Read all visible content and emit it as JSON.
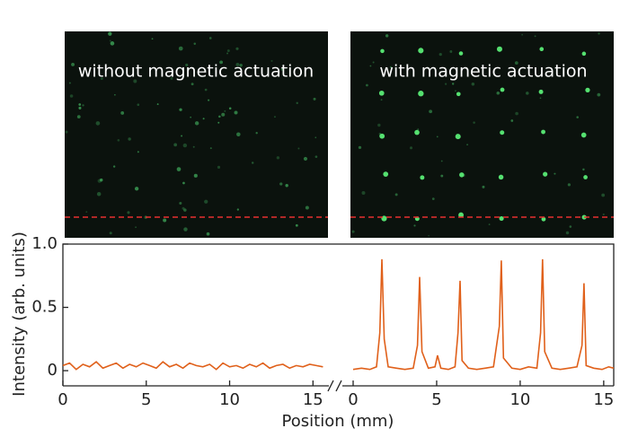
{
  "chart_data": [
    {
      "type": "line",
      "annotation": "without magnetic actuation",
      "ylabel": "Intensity (arb. units)",
      "xlabel": "Position (mm)",
      "xlim": [
        0,
        15.9
      ],
      "xticks": [
        0,
        5,
        10,
        15
      ],
      "ylim": [
        -0.12,
        1.0
      ],
      "yticks": [
        {
          "value": 0,
          "label": "0"
        },
        0.5,
        {
          "value": 1.0,
          "label": "1.0"
        }
      ],
      "series": [
        {
          "color": "#e0601a",
          "x": [
            0,
            0.4,
            0.8,
            1.2,
            1.6,
            2.0,
            2.4,
            2.8,
            3.2,
            3.6,
            4.0,
            4.4,
            4.8,
            5.2,
            5.6,
            6.0,
            6.4,
            6.8,
            7.2,
            7.6,
            8.0,
            8.4,
            8.8,
            9.2,
            9.6,
            10.0,
            10.4,
            10.8,
            11.2,
            11.6,
            12.0,
            12.4,
            12.8,
            13.2,
            13.6,
            14.0,
            14.4,
            14.8,
            15.2,
            15.6
          ],
          "values": [
            0.04,
            0.06,
            0.01,
            0.05,
            0.03,
            0.07,
            0.02,
            0.04,
            0.06,
            0.02,
            0.05,
            0.03,
            0.06,
            0.04,
            0.02,
            0.07,
            0.03,
            0.05,
            0.02,
            0.06,
            0.04,
            0.03,
            0.05,
            0.01,
            0.06,
            0.03,
            0.04,
            0.02,
            0.05,
            0.03,
            0.06,
            0.02,
            0.04,
            0.05,
            0.02,
            0.04,
            0.03,
            0.05,
            0.04,
            0.03
          ]
        }
      ]
    },
    {
      "type": "line",
      "annotation": "with magnetic actuation",
      "xlim": [
        0,
        15.6
      ],
      "xticks": [
        0,
        5,
        10,
        15
      ],
      "ylim": [
        -0.12,
        1.0
      ],
      "series": [
        {
          "color": "#e0601a",
          "x": [
            0,
            0.5,
            1.0,
            1.4,
            1.6,
            1.72,
            1.86,
            2.1,
            2.6,
            3.1,
            3.6,
            3.85,
            3.98,
            4.12,
            4.5,
            4.9,
            5.05,
            5.25,
            5.7,
            6.1,
            6.28,
            6.4,
            6.52,
            6.9,
            7.4,
            7.9,
            8.4,
            8.75,
            8.87,
            9.0,
            9.5,
            10.0,
            10.5,
            11.0,
            11.22,
            11.34,
            11.47,
            11.9,
            12.4,
            12.9,
            13.4,
            13.7,
            13.82,
            13.95,
            14.4,
            14.9,
            15.3,
            15.6
          ],
          "values": [
            0.01,
            0.02,
            0.01,
            0.03,
            0.3,
            0.88,
            0.25,
            0.03,
            0.02,
            0.01,
            0.02,
            0.2,
            0.74,
            0.15,
            0.02,
            0.03,
            0.12,
            0.02,
            0.01,
            0.03,
            0.3,
            0.71,
            0.08,
            0.02,
            0.01,
            0.02,
            0.03,
            0.35,
            0.87,
            0.1,
            0.02,
            0.01,
            0.03,
            0.02,
            0.3,
            0.88,
            0.15,
            0.02,
            0.01,
            0.02,
            0.03,
            0.2,
            0.69,
            0.04,
            0.02,
            0.01,
            0.03,
            0.02
          ]
        }
      ]
    }
  ]
}
